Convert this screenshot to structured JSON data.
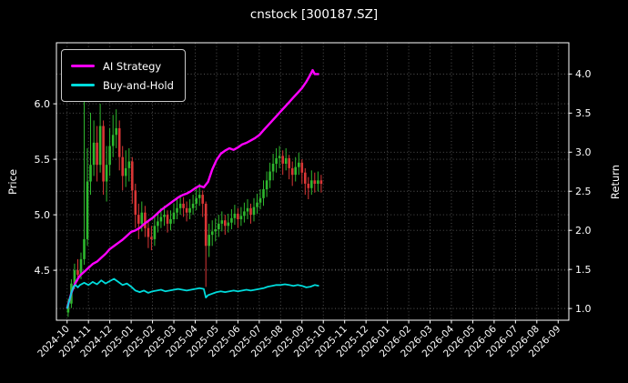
{
  "title": "cnstock [300187.SZ]",
  "colors": {
    "background": "#000000",
    "text": "#ffffff",
    "grid": "#ffffff",
    "frame": "#ffffff",
    "up_candle": "#2eb82e",
    "down_candle": "#d93636"
  },
  "chart_data": {
    "type": "candlestick+line",
    "title": "cnstock [300187.SZ]",
    "x_unit": "months since 2024-10",
    "xlim": [
      -0.5,
      23.5
    ],
    "x_ticks": [
      "2024-10",
      "2024-11",
      "2024-12",
      "2025-01",
      "2025-02",
      "2025-03",
      "2025-04",
      "2025-05",
      "2025-06",
      "2025-07",
      "2025-08",
      "2025-09",
      "2025-10",
      "2025-11",
      "2025-12",
      "2026-01",
      "2026-02",
      "2026-03",
      "2026-04",
      "2026-05",
      "2026-06",
      "2026-07",
      "2026-08",
      "2026-09"
    ],
    "left_axis": {
      "label": "Price",
      "ticks": [
        4.5,
        5.0,
        5.5,
        6.0
      ],
      "range": [
        4.05,
        6.55
      ]
    },
    "right_axis": {
      "label": "Return",
      "ticks": [
        1.0,
        1.5,
        2.0,
        2.5,
        3.0,
        3.5,
        4.0
      ],
      "range": [
        0.85,
        4.4
      ]
    },
    "grid": true,
    "legend_position": "upper-left",
    "candles_format": "[t, open, high, low, close]",
    "candles": [
      [
        0.05,
        4.12,
        4.24,
        4.08,
        4.2
      ],
      [
        0.2,
        4.2,
        4.42,
        4.16,
        4.38
      ],
      [
        0.35,
        4.38,
        4.56,
        4.33,
        4.5
      ],
      [
        0.5,
        4.5,
        4.6,
        4.4,
        4.46
      ],
      [
        0.65,
        4.46,
        4.66,
        4.42,
        4.6
      ],
      [
        0.8,
        4.6,
        6.1,
        4.55,
        4.78
      ],
      [
        0.95,
        4.78,
        5.6,
        4.72,
        5.3
      ],
      [
        1.1,
        5.3,
        5.92,
        5.18,
        5.45
      ],
      [
        1.25,
        5.45,
        5.85,
        5.35,
        5.65
      ],
      [
        1.4,
        5.65,
        5.8,
        5.3,
        5.45
      ],
      [
        1.55,
        5.45,
        6.0,
        5.38,
        5.8
      ],
      [
        1.7,
        5.8,
        5.85,
        5.18,
        5.3
      ],
      [
        1.85,
        5.3,
        5.62,
        5.12,
        5.45
      ],
      [
        2.0,
        5.45,
        5.78,
        5.35,
        5.62
      ],
      [
        2.15,
        5.62,
        5.9,
        5.52,
        5.72
      ],
      [
        2.3,
        5.72,
        5.95,
        5.6,
        5.78
      ],
      [
        2.45,
        5.78,
        5.85,
        5.4,
        5.52
      ],
      [
        2.6,
        5.52,
        5.62,
        5.22,
        5.35
      ],
      [
        2.75,
        5.35,
        5.58,
        5.25,
        5.42
      ],
      [
        2.9,
        5.42,
        5.6,
        5.3,
        5.48
      ],
      [
        3.05,
        5.48,
        5.52,
        5.1,
        5.22
      ],
      [
        3.2,
        5.22,
        5.28,
        4.88,
        5.0
      ],
      [
        3.35,
        5.0,
        5.1,
        4.78,
        4.92
      ],
      [
        3.5,
        4.92,
        5.12,
        4.85,
        5.02
      ],
      [
        3.65,
        5.02,
        5.08,
        4.8,
        4.88
      ],
      [
        3.8,
        4.88,
        4.95,
        4.7,
        4.8
      ],
      [
        3.95,
        4.8,
        4.9,
        4.68,
        4.78
      ],
      [
        4.1,
        4.78,
        4.98,
        4.72,
        4.9
      ],
      [
        4.25,
        4.9,
        5.02,
        4.84,
        4.94
      ],
      [
        4.4,
        4.94,
        5.06,
        4.88,
        4.98
      ],
      [
        4.55,
        4.98,
        5.08,
        4.9,
        5.0
      ],
      [
        4.7,
        5.0,
        5.04,
        4.84,
        4.92
      ],
      [
        4.85,
        4.92,
        5.04,
        4.86,
        4.96
      ],
      [
        5.0,
        4.96,
        5.1,
        4.92,
        5.02
      ],
      [
        5.15,
        5.02,
        5.14,
        4.96,
        5.06
      ],
      [
        5.3,
        5.06,
        5.18,
        5.0,
        5.1
      ],
      [
        5.45,
        5.1,
        5.16,
        4.98,
        5.06
      ],
      [
        5.6,
        5.06,
        5.12,
        4.94,
        5.02
      ],
      [
        5.75,
        5.02,
        5.14,
        4.96,
        5.06
      ],
      [
        5.9,
        5.06,
        5.18,
        5.0,
        5.1
      ],
      [
        6.05,
        5.1,
        5.24,
        5.04,
        5.15
      ],
      [
        6.2,
        5.15,
        5.28,
        5.08,
        5.18
      ],
      [
        6.35,
        5.18,
        5.22,
        4.98,
        5.1
      ],
      [
        6.5,
        5.1,
        5.12,
        4.35,
        4.72
      ],
      [
        6.65,
        4.72,
        4.92,
        4.62,
        4.82
      ],
      [
        6.8,
        4.82,
        4.95,
        4.72,
        4.85
      ],
      [
        6.95,
        4.85,
        4.97,
        4.76,
        4.87
      ],
      [
        7.1,
        4.87,
        5.0,
        4.8,
        4.92
      ],
      [
        7.25,
        4.92,
        5.03,
        4.85,
        4.95
      ],
      [
        7.4,
        4.95,
        5.0,
        4.82,
        4.9
      ],
      [
        7.55,
        4.9,
        5.01,
        4.84,
        4.93
      ],
      [
        7.7,
        4.93,
        5.05,
        4.87,
        4.97
      ],
      [
        7.85,
        4.97,
        5.09,
        4.91,
        5.01
      ],
      [
        8.0,
        5.01,
        5.06,
        4.88,
        4.96
      ],
      [
        8.15,
        4.96,
        5.07,
        4.9,
        4.99
      ],
      [
        8.3,
        4.99,
        5.11,
        4.93,
        5.03
      ],
      [
        8.45,
        5.03,
        5.14,
        4.96,
        5.06
      ],
      [
        8.6,
        5.06,
        5.1,
        4.92,
        5.0
      ],
      [
        8.75,
        5.0,
        5.15,
        4.94,
        5.07
      ],
      [
        8.9,
        5.07,
        5.19,
        5.01,
        5.11
      ],
      [
        9.05,
        5.11,
        5.23,
        5.05,
        5.15
      ],
      [
        9.2,
        5.15,
        5.31,
        5.08,
        5.23
      ],
      [
        9.35,
        5.23,
        5.39,
        5.16,
        5.31
      ],
      [
        9.5,
        5.31,
        5.47,
        5.24,
        5.39
      ],
      [
        9.65,
        5.39,
        5.55,
        5.31,
        5.46
      ],
      [
        9.8,
        5.46,
        5.6,
        5.38,
        5.51
      ],
      [
        9.95,
        5.51,
        5.62,
        5.42,
        5.53
      ],
      [
        10.1,
        5.53,
        5.58,
        5.36,
        5.46
      ],
      [
        10.25,
        5.46,
        5.6,
        5.4,
        5.51
      ],
      [
        10.4,
        5.51,
        5.54,
        5.32,
        5.42
      ],
      [
        10.55,
        5.42,
        5.48,
        5.26,
        5.36
      ],
      [
        10.7,
        5.36,
        5.52,
        5.3,
        5.43
      ],
      [
        10.85,
        5.43,
        5.56,
        5.36,
        5.47
      ],
      [
        11.0,
        5.47,
        5.5,
        5.28,
        5.38
      ],
      [
        11.15,
        5.38,
        5.42,
        5.18,
        5.28
      ],
      [
        11.3,
        5.28,
        5.34,
        5.14,
        5.24
      ],
      [
        11.45,
        5.24,
        5.4,
        5.18,
        5.31
      ],
      [
        11.6,
        5.31,
        5.38,
        5.2,
        5.28
      ],
      [
        11.75,
        5.28,
        5.39,
        5.21,
        5.31
      ],
      [
        11.9,
        5.31,
        5.36,
        5.2,
        5.28
      ]
    ],
    "series": [
      {
        "name": "AI Strategy",
        "axis": "right",
        "color": "#ff00ff",
        "points": [
          [
            0.0,
            1.0
          ],
          [
            0.1,
            1.1
          ],
          [
            0.2,
            1.2
          ],
          [
            0.3,
            1.27
          ],
          [
            0.4,
            1.33
          ],
          [
            0.5,
            1.38
          ],
          [
            0.6,
            1.42
          ],
          [
            0.8,
            1.47
          ],
          [
            1.0,
            1.52
          ],
          [
            1.2,
            1.57
          ],
          [
            1.4,
            1.6
          ],
          [
            1.6,
            1.65
          ],
          [
            1.8,
            1.7
          ],
          [
            2.0,
            1.76
          ],
          [
            2.2,
            1.8
          ],
          [
            2.4,
            1.84
          ],
          [
            2.6,
            1.88
          ],
          [
            2.8,
            1.93
          ],
          [
            3.0,
            1.98
          ],
          [
            3.2,
            2.0
          ],
          [
            3.4,
            2.03
          ],
          [
            3.6,
            2.08
          ],
          [
            3.8,
            2.12
          ],
          [
            4.0,
            2.16
          ],
          [
            4.2,
            2.21
          ],
          [
            4.4,
            2.26
          ],
          [
            4.6,
            2.3
          ],
          [
            4.8,
            2.34
          ],
          [
            5.0,
            2.38
          ],
          [
            5.2,
            2.42
          ],
          [
            5.4,
            2.45
          ],
          [
            5.6,
            2.47
          ],
          [
            5.8,
            2.5
          ],
          [
            6.0,
            2.54
          ],
          [
            6.2,
            2.57
          ],
          [
            6.4,
            2.55
          ],
          [
            6.6,
            2.62
          ],
          [
            6.8,
            2.78
          ],
          [
            7.0,
            2.9
          ],
          [
            7.2,
            2.98
          ],
          [
            7.4,
            3.02
          ],
          [
            7.6,
            3.05
          ],
          [
            7.8,
            3.03
          ],
          [
            8.0,
            3.06
          ],
          [
            8.2,
            3.1
          ],
          [
            8.4,
            3.12
          ],
          [
            8.6,
            3.15
          ],
          [
            8.8,
            3.18
          ],
          [
            9.0,
            3.22
          ],
          [
            9.2,
            3.28
          ],
          [
            9.4,
            3.34
          ],
          [
            9.6,
            3.4
          ],
          [
            9.8,
            3.46
          ],
          [
            10.0,
            3.52
          ],
          [
            10.2,
            3.58
          ],
          [
            10.4,
            3.64
          ],
          [
            10.6,
            3.7
          ],
          [
            10.8,
            3.76
          ],
          [
            11.0,
            3.82
          ],
          [
            11.2,
            3.9
          ],
          [
            11.35,
            3.97
          ],
          [
            11.5,
            4.05
          ],
          [
            11.6,
            4.0
          ],
          [
            11.8,
            4.0
          ]
        ]
      },
      {
        "name": "Buy-and-Hold",
        "axis": "right",
        "color": "#00dcdc",
        "points": [
          [
            0.0,
            1.0
          ],
          [
            0.1,
            1.1
          ],
          [
            0.2,
            1.2
          ],
          [
            0.3,
            1.28
          ],
          [
            0.4,
            1.3
          ],
          [
            0.5,
            1.27
          ],
          [
            0.6,
            1.3
          ],
          [
            0.8,
            1.33
          ],
          [
            1.0,
            1.3
          ],
          [
            1.2,
            1.34
          ],
          [
            1.4,
            1.31
          ],
          [
            1.6,
            1.36
          ],
          [
            1.8,
            1.32
          ],
          [
            2.0,
            1.35
          ],
          [
            2.2,
            1.38
          ],
          [
            2.4,
            1.34
          ],
          [
            2.6,
            1.3
          ],
          [
            2.8,
            1.32
          ],
          [
            3.0,
            1.28
          ],
          [
            3.2,
            1.23
          ],
          [
            3.4,
            1.21
          ],
          [
            3.6,
            1.23
          ],
          [
            3.8,
            1.2
          ],
          [
            4.0,
            1.22
          ],
          [
            4.2,
            1.23
          ],
          [
            4.4,
            1.24
          ],
          [
            4.6,
            1.22
          ],
          [
            4.8,
            1.23
          ],
          [
            5.0,
            1.24
          ],
          [
            5.2,
            1.25
          ],
          [
            5.4,
            1.24
          ],
          [
            5.6,
            1.23
          ],
          [
            5.8,
            1.24
          ],
          [
            6.0,
            1.25
          ],
          [
            6.2,
            1.26
          ],
          [
            6.4,
            1.25
          ],
          [
            6.5,
            1.14
          ],
          [
            6.6,
            1.17
          ],
          [
            6.8,
            1.19
          ],
          [
            7.0,
            1.21
          ],
          [
            7.2,
            1.22
          ],
          [
            7.4,
            1.21
          ],
          [
            7.6,
            1.22
          ],
          [
            7.8,
            1.23
          ],
          [
            8.0,
            1.22
          ],
          [
            8.2,
            1.23
          ],
          [
            8.4,
            1.24
          ],
          [
            8.6,
            1.23
          ],
          [
            8.8,
            1.24
          ],
          [
            9.0,
            1.25
          ],
          [
            9.2,
            1.26
          ],
          [
            9.4,
            1.28
          ],
          [
            9.6,
            1.29
          ],
          [
            9.8,
            1.3
          ],
          [
            10.0,
            1.3
          ],
          [
            10.2,
            1.31
          ],
          [
            10.4,
            1.3
          ],
          [
            10.6,
            1.29
          ],
          [
            10.8,
            1.3
          ],
          [
            11.0,
            1.29
          ],
          [
            11.2,
            1.27
          ],
          [
            11.4,
            1.28
          ],
          [
            11.6,
            1.3
          ],
          [
            11.8,
            1.29
          ]
        ]
      }
    ]
  }
}
